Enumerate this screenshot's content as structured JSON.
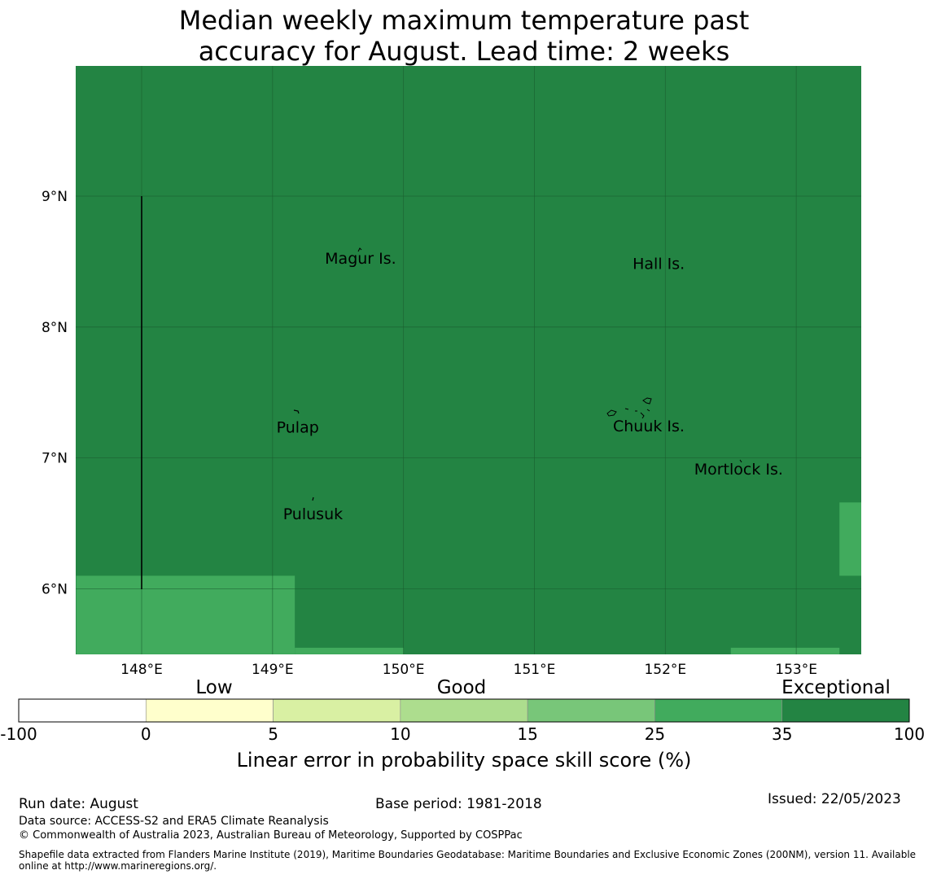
{
  "title": {
    "line1": "Median weekly maximum temperature past",
    "line2": "accuracy for August. Lead time: 2 weeks"
  },
  "map": {
    "lon_ticks": [
      "148°E",
      "149°E",
      "150°E",
      "151°E",
      "152°E",
      "153°E"
    ],
    "lat_ticks": [
      "9°N",
      "8°N",
      "7°N",
      "6°N"
    ],
    "extent": {
      "lon_min": 147.5,
      "lon_max": 153.5,
      "lat_min": 5.5,
      "lat_max": 10.0
    },
    "base_color": "#238443",
    "cells": [
      {
        "lon0": 147.5,
        "lon1": 149.17,
        "lat0": 5.5,
        "lat1": 6.1,
        "color": "#41ab5d"
      },
      {
        "lon0": 149.17,
        "lon1": 150.0,
        "lat0": 5.5,
        "lat1": 5.55,
        "color": "#41ab5d"
      },
      {
        "lon0": 152.5,
        "lon1": 153.33,
        "lat0": 5.5,
        "lat1": 5.55,
        "color": "#41ab5d"
      },
      {
        "lon0": 153.33,
        "lon1": 153.5,
        "lat0": 6.1,
        "lat1": 6.66,
        "color": "#41ab5d"
      }
    ],
    "places": [
      {
        "name": "Magur Is.",
        "lon": 149.4,
        "lat": 8.52
      },
      {
        "name": "Hall Is.",
        "lon": 151.75,
        "lat": 8.48
      },
      {
        "name": "Pulap",
        "lon": 149.03,
        "lat": 7.23
      },
      {
        "name": "Chuuk Is.",
        "lon": 151.6,
        "lat": 7.24
      },
      {
        "name": "Mortlock Is.",
        "lon": 152.22,
        "lat": 6.91
      },
      {
        "name": "Pulusuk",
        "lon": 149.08,
        "lat": 6.57
      }
    ]
  },
  "legend": {
    "categories": [
      "Low",
      "Good",
      "Exceptional"
    ],
    "ticks": [
      "-100",
      "0",
      "5",
      "10",
      "15",
      "25",
      "35",
      "100"
    ],
    "colors": [
      "#ffffff",
      "#ffffcc",
      "#d9f0a3",
      "#addd8e",
      "#78c679",
      "#41ab5d",
      "#238443"
    ],
    "label": "Linear error in probability space skill score (%)"
  },
  "footer": {
    "run_date": "Run date: August",
    "base_period": "Base period: 1981-2018",
    "issued": "Issued: 22/05/2023",
    "data_source": "Data source: ACCESS-S2 and ERA5 Climate Reanalysis",
    "copyright": "© Commonwealth of Australia 2023, Australian Bureau of Meteorology, Supported by COSPPac",
    "shapefile_1": "Shapefile data extracted from Flanders Marine Institute (2019), Maritime Boundaries Geodatabase: Maritime Boundaries and Exclusive Economic Zones (200NM), version 11. Available",
    "shapefile_2": "online at http://www.marineregions.org/."
  }
}
